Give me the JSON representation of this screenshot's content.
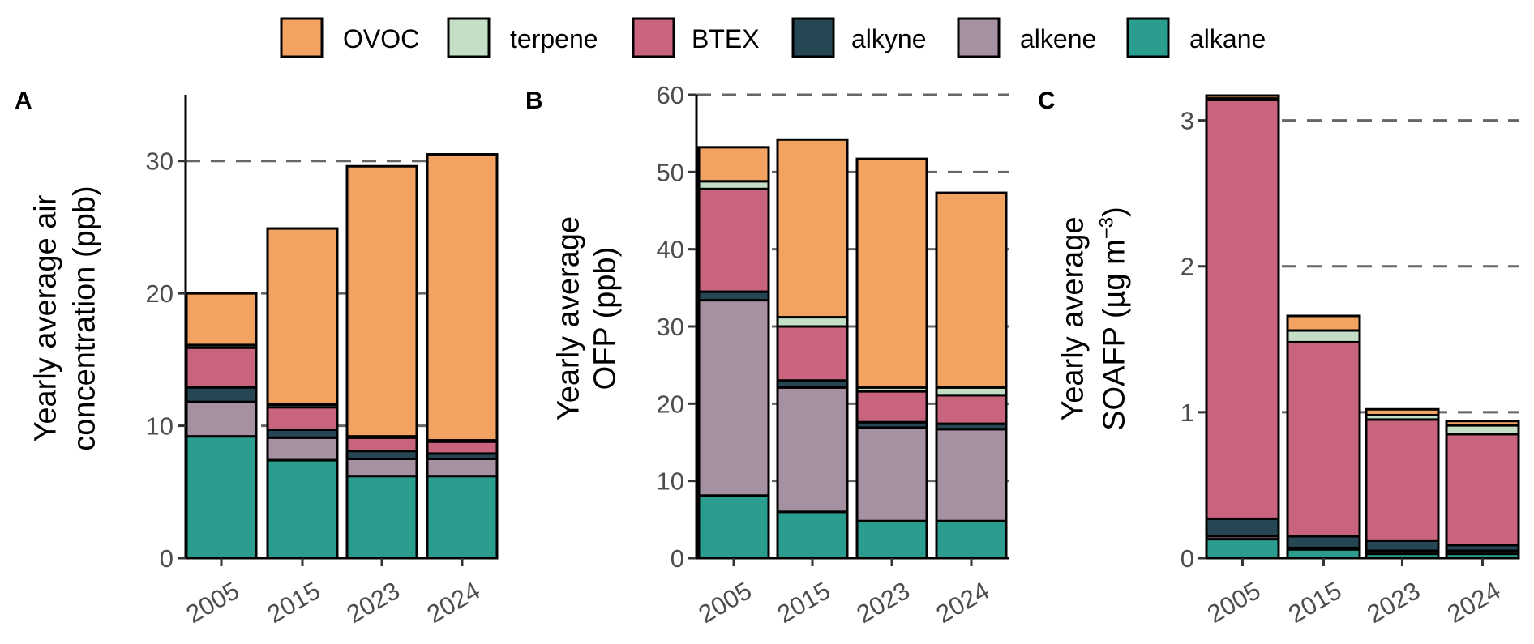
{
  "legend": {
    "items": [
      {
        "name": "OVOC",
        "color": "#F2A362"
      },
      {
        "name": "terpene",
        "color": "#C5DEC6"
      },
      {
        "name": "BTEX",
        "color": "#C8647E"
      },
      {
        "name": "alkyne",
        "color": "#264653"
      },
      {
        "name": "alkene",
        "color": "#A691A3"
      },
      {
        "name": "alkane",
        "color": "#2A9D8F"
      }
    ]
  },
  "chart_data": [
    {
      "type": "bar",
      "stacked": true,
      "panel": "A",
      "title": "",
      "xlabel": "",
      "ylabel": "Yearly average air concentration (ppb)",
      "ylabel_lines": [
        "Yearly average air",
        "concentration (ppb)"
      ],
      "categories": [
        "2005",
        "2015",
        "2023",
        "2024"
      ],
      "ylim": [
        0,
        35
      ],
      "yticks": [
        0,
        10,
        20,
        30
      ],
      "grid": "horizontal dashed",
      "series": [
        {
          "name": "alkane",
          "values": [
            9.2,
            7.4,
            6.2,
            6.2
          ]
        },
        {
          "name": "alkene",
          "values": [
            2.6,
            1.7,
            1.3,
            1.3
          ]
        },
        {
          "name": "alkyne",
          "values": [
            1.1,
            0.6,
            0.6,
            0.4
          ]
        },
        {
          "name": "BTEX",
          "values": [
            3.0,
            1.7,
            1.0,
            0.9
          ]
        },
        {
          "name": "terpene",
          "values": [
            0.2,
            0.2,
            0.1,
            0.1
          ]
        },
        {
          "name": "OVOC",
          "values": [
            3.9,
            13.3,
            20.4,
            21.6
          ]
        }
      ],
      "totals": [
        20.0,
        24.9,
        29.6,
        30.5
      ]
    },
    {
      "type": "bar",
      "stacked": true,
      "panel": "B",
      "title": "",
      "xlabel": "",
      "ylabel": "Yearly average OFP (ppb)",
      "ylabel_lines": [
        "Yearly average",
        "OFP (ppb)"
      ],
      "categories": [
        "2005",
        "2015",
        "2023",
        "2024"
      ],
      "ylim": [
        0,
        60
      ],
      "yticks": [
        0,
        10,
        20,
        30,
        40,
        50,
        60
      ],
      "grid": "horizontal dashed",
      "series": [
        {
          "name": "alkane",
          "values": [
            8.1,
            6.0,
            4.8,
            4.8
          ]
        },
        {
          "name": "alkene",
          "values": [
            25.3,
            16.1,
            12.1,
            11.9
          ]
        },
        {
          "name": "alkyne",
          "values": [
            1.1,
            0.9,
            0.7,
            0.7
          ]
        },
        {
          "name": "BTEX",
          "values": [
            13.3,
            7.0,
            4.0,
            3.7
          ]
        },
        {
          "name": "terpene",
          "values": [
            1.0,
            1.2,
            0.5,
            1.0
          ]
        },
        {
          "name": "OVOC",
          "values": [
            4.4,
            23.0,
            29.6,
            25.2
          ]
        }
      ],
      "totals": [
        53.2,
        54.2,
        51.7,
        47.3
      ]
    },
    {
      "type": "bar",
      "stacked": true,
      "panel": "C",
      "title": "",
      "xlabel": "",
      "ylabel": "Yearly average SOAFP (µg m⁻³)",
      "ylabel_lines": [
        "Yearly average",
        "SOAFP (µg m",
        "−3",
        ")"
      ],
      "categories": [
        "2005",
        "2015",
        "2023",
        "2024"
      ],
      "ylim": [
        0,
        3.17
      ],
      "yticks": [
        0,
        1,
        2,
        3
      ],
      "grid": "horizontal dashed",
      "series": [
        {
          "name": "alkane",
          "values": [
            0.13,
            0.06,
            0.03,
            0.03
          ]
        },
        {
          "name": "alkene",
          "values": [
            0.02,
            0.01,
            0.02,
            0.02
          ]
        },
        {
          "name": "alkyne",
          "values": [
            0.12,
            0.08,
            0.07,
            0.04
          ]
        },
        {
          "name": "BTEX",
          "values": [
            2.87,
            1.33,
            0.83,
            0.76
          ]
        },
        {
          "name": "terpene",
          "values": [
            0.01,
            0.08,
            0.03,
            0.06
          ]
        },
        {
          "name": "OVOC",
          "values": [
            0.02,
            0.1,
            0.04,
            0.03
          ]
        }
      ],
      "totals": [
        3.17,
        1.66,
        1.02,
        0.94
      ]
    }
  ]
}
